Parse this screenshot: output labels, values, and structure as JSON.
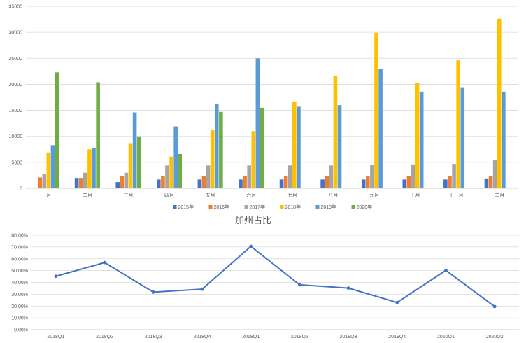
{
  "colors": {
    "gridline": "#d9d9d9",
    "axis": "#bfbfbf",
    "text": "#595959",
    "line": "#4472c4"
  },
  "chart_data": [
    {
      "type": "bar",
      "title": "",
      "xlabel": "",
      "ylabel": "",
      "ylim": [
        0,
        35000
      ],
      "yticks": [
        "0",
        "5000",
        "10000",
        "15000",
        "20000",
        "25000",
        "30000",
        "35000"
      ],
      "grid": true,
      "legend_position": "bottom",
      "categories": [
        "一月",
        "二月",
        "三月",
        "四月",
        "五月",
        "六月",
        "七月",
        "八月",
        "九月",
        "十月",
        "十一月",
        "十二月"
      ],
      "series": [
        {
          "name": "2015年",
          "color": "#4472c4",
          "values": [
            null,
            2000,
            1200,
            1700,
            1700,
            1700,
            1700,
            1700,
            1700,
            1700,
            1700,
            1900
          ]
        },
        {
          "name": "2016年",
          "color": "#ed7d31",
          "values": [
            2100,
            2000,
            2300,
            2300,
            2300,
            2300,
            2300,
            2300,
            2300,
            2300,
            2300,
            2300
          ]
        },
        {
          "name": "2017年",
          "color": "#a5a5a5",
          "values": [
            2800,
            3000,
            3000,
            4400,
            4400,
            4400,
            4400,
            4400,
            4500,
            4600,
            4700,
            5400
          ]
        },
        {
          "name": "2018年",
          "color": "#ffc000",
          "values": [
            6900,
            7500,
            8700,
            6100,
            11200,
            11000,
            16700,
            21700,
            29900,
            20300,
            24600,
            32600
          ]
        },
        {
          "name": "2019年",
          "color": "#5b9bd5",
          "values": [
            8300,
            7700,
            14600,
            11900,
            16300,
            25000,
            15700,
            16000,
            23000,
            18600,
            19300,
            18600
          ]
        },
        {
          "name": "2020年",
          "color": "#70ad47",
          "values": [
            22300,
            20400,
            10000,
            6600,
            14700,
            15500,
            null,
            null,
            null,
            null,
            null,
            null
          ]
        }
      ]
    },
    {
      "type": "line",
      "title": "加州占比",
      "xlabel": "",
      "ylabel": "",
      "ylim": [
        0,
        80
      ],
      "yticks": [
        "0.00%",
        "10.00%",
        "20.00%",
        "30.00%",
        "40.00%",
        "50.00%",
        "60.00%",
        "70.00%",
        "80.00%"
      ],
      "grid": true,
      "categories": [
        "2018Q1",
        "2018Q2",
        "2018Q3",
        "2018Q4",
        "2019Q1",
        "2019Q2",
        "2019Q3",
        "2019Q4",
        "2020Q1",
        "2020Q2"
      ],
      "series": [
        {
          "color": "#4472c4",
          "values": [
            45.2,
            56.8,
            31.8,
            34.3,
            70.5,
            38.0,
            35.2,
            23.0,
            50.2,
            19.6
          ]
        }
      ]
    }
  ]
}
